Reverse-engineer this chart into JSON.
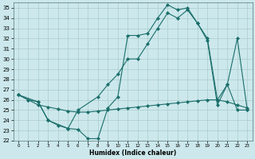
{
  "xlabel": "Humidex (Indice chaleur)",
  "xlim": [
    -0.5,
    23.5
  ],
  "ylim": [
    22,
    35.5
  ],
  "yticks": [
    22,
    23,
    24,
    25,
    26,
    27,
    28,
    29,
    30,
    31,
    32,
    33,
    34,
    35
  ],
  "xticks": [
    0,
    1,
    2,
    3,
    4,
    5,
    6,
    7,
    8,
    9,
    10,
    11,
    12,
    13,
    14,
    15,
    16,
    17,
    18,
    19,
    20,
    21,
    22,
    23
  ],
  "bg_color": "#cce8ec",
  "grid_color": "#aacccc",
  "line_color": "#1a6e6a",
  "line1_x": [
    0,
    1,
    2,
    3,
    4,
    5,
    6,
    7,
    8,
    9,
    10,
    11,
    12,
    13,
    14,
    15,
    16,
    17,
    18,
    19,
    20,
    21,
    22,
    23
  ],
  "line1_y": [
    26.5,
    26.0,
    25.8,
    24.0,
    23.5,
    23.2,
    23.1,
    22.2,
    22.2,
    25.2,
    26.3,
    32.3,
    32.3,
    32.5,
    34.0,
    35.3,
    34.8,
    35.0,
    33.5,
    31.8,
    25.5,
    27.5,
    25.0,
    25.0
  ],
  "line2_x": [
    0,
    2,
    3,
    5,
    6,
    8,
    9,
    10,
    11,
    12,
    13,
    14,
    15,
    16,
    17,
    18,
    19,
    20,
    21,
    22,
    23
  ],
  "line2_y": [
    26.5,
    25.8,
    24.0,
    23.2,
    25.0,
    26.3,
    27.5,
    28.5,
    30.0,
    30.0,
    31.5,
    33.0,
    34.5,
    34.0,
    34.8,
    33.5,
    32.0,
    26.0,
    27.5,
    32.0,
    25.0
  ],
  "line3_x": [
    0,
    1,
    2,
    3,
    4,
    5,
    6,
    7,
    8,
    9,
    10,
    11,
    12,
    13,
    14,
    15,
    16,
    17,
    18,
    19,
    20,
    21,
    22,
    23
  ],
  "line3_y": [
    26.5,
    26.0,
    25.5,
    25.3,
    25.1,
    24.9,
    24.8,
    24.8,
    24.9,
    25.0,
    25.1,
    25.2,
    25.3,
    25.4,
    25.5,
    25.6,
    25.7,
    25.8,
    25.9,
    26.0,
    26.0,
    25.8,
    25.5,
    25.2
  ]
}
